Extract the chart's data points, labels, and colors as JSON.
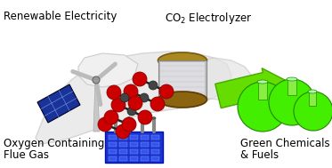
{
  "bg_color": "#ffffff",
  "labels": {
    "top_left": "Renewable Electricity",
    "co2_part1": "CO",
    "co2_sub": "2",
    "co2_part2": " Electrolyzer",
    "bottom_left_line1": "Oxygen Containing",
    "bottom_left_line2": "Flue Gas",
    "bottom_right_line1": "Green Chemicals",
    "bottom_right_line2": "& Fuels"
  },
  "label_fontsize": 8.5,
  "label_color": "#000000",
  "fig_width": 3.73,
  "fig_height": 1.89,
  "dpi": 100,
  "arrow_color": "#66dd00",
  "solar_panel_color": "#1a3399",
  "o2_molecule_color": "#cc0000",
  "flue_gas_box_color": "#1a33cc",
  "chemicals_color": "#44ee00",
  "swirl_color": "#e0e0e0",
  "turbine_color": "#bbbbbb",
  "electrolyzer_body": "#c0c0c0",
  "electrolyzer_ring": "#8B6914"
}
